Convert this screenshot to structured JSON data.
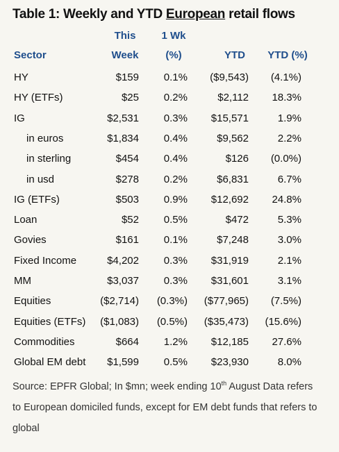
{
  "title_before": "Table 1: Weekly and YTD",
  "title_emphasis": "European",
  "title_after": "retail flows",
  "table": {
    "columns": [
      {
        "lines": [
          "Sector"
        ]
      },
      {
        "lines": [
          "This",
          "Week"
        ]
      },
      {
        "lines": [
          "1 Wk",
          "(%)"
        ]
      },
      {
        "lines": [
          "YTD"
        ]
      },
      {
        "lines": [
          "YTD (%)"
        ]
      }
    ],
    "rows": [
      {
        "cells": [
          "HY",
          "$159",
          "0.1%",
          "($9,543)",
          "(4.1%)"
        ]
      },
      {
        "cells": [
          "HY (ETFs)",
          "$25",
          "0.2%",
          "$2,112",
          "18.3%"
        ]
      },
      {
        "cells": [
          "IG",
          "$2,531",
          "0.3%",
          "$15,571",
          "1.9%"
        ]
      },
      {
        "cells": [
          "in euros",
          "$1,834",
          "0.4%",
          "$9,562",
          "2.2%"
        ],
        "indented": true
      },
      {
        "cells": [
          "in sterling",
          "$454",
          "0.4%",
          "$126",
          "(0.0%)"
        ],
        "indented": true
      },
      {
        "cells": [
          "in usd",
          "$278",
          "0.2%",
          "$6,831",
          "6.7%"
        ],
        "indented": true
      },
      {
        "cells": [
          "IG (ETFs)",
          "$503",
          "0.9%",
          "$12,692",
          "24.8%"
        ]
      },
      {
        "cells": [
          "Loan",
          "$52",
          "0.5%",
          "$472",
          "5.3%"
        ]
      },
      {
        "cells": [
          "Govies",
          "$161",
          "0.1%",
          "$7,248",
          "3.0%"
        ]
      },
      {
        "cells": [
          "Fixed Income",
          "$4,202",
          "0.3%",
          "$31,919",
          "2.1%"
        ]
      },
      {
        "cells": [
          "MM",
          "$3,037",
          "0.3%",
          "$31,601",
          "3.1%"
        ]
      },
      {
        "cells": [
          "Equities",
          "($2,714)",
          "(0.3%)",
          "($77,965)",
          "(7.5%)"
        ]
      },
      {
        "cells": [
          "Equities (ETFs)",
          "($1,083)",
          "(0.5%)",
          "($35,473)",
          "(15.6%)"
        ]
      },
      {
        "cells": [
          "Commodities",
          "$664",
          "1.2%",
          "$12,185",
          "27.6%"
        ]
      },
      {
        "cells": [
          "Global EM debt",
          "$1,599",
          "0.5%",
          "$23,930",
          "8.0%"
        ]
      }
    ]
  },
  "note": {
    "before": "Source: EPFR Global; In $mn; week ending  10",
    "superscript": "th",
    "after": " August Data refers to European domiciled funds, except for EM debt funds that refers to global"
  }
}
